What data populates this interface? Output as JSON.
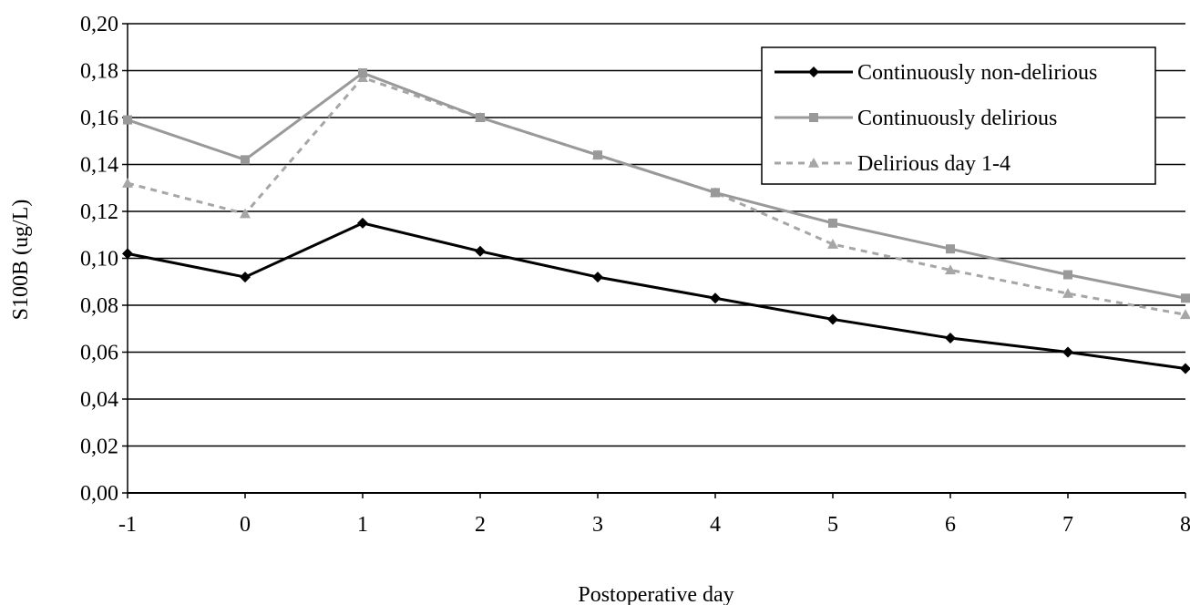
{
  "chart_data": {
    "type": "line",
    "xlabel": "Postoperative day",
    "ylabel": "S100B (ug/L)",
    "x": [
      -1,
      0,
      1,
      2,
      3,
      4,
      5,
      6,
      7,
      8
    ],
    "x_tick_labels": [
      "-1",
      "0",
      "1",
      "2",
      "3",
      "4",
      "5",
      "6",
      "7",
      "8"
    ],
    "y_tick_labels": [
      "0,00",
      "0,02",
      "0,04",
      "0,06",
      "0,08",
      "0,10",
      "0,12",
      "0,14",
      "0,16",
      "0,18",
      "0,20"
    ],
    "ylim": [
      0,
      0.2
    ],
    "y_ticks": [
      0,
      0.02,
      0.04,
      0.06,
      0.08,
      0.1,
      0.12,
      0.14,
      0.16,
      0.18,
      0.2
    ],
    "grid": "horizontal",
    "legend_position": "top-right",
    "series": [
      {
        "name": "Continuously non-delirious",
        "values": [
          0.102,
          0.092,
          0.115,
          0.103,
          0.092,
          0.083,
          0.074,
          0.066,
          0.06,
          0.053
        ],
        "color": "#000000",
        "marker": "diamond",
        "line_style": "solid"
      },
      {
        "name": "Continuously delirious",
        "values": [
          0.159,
          0.142,
          0.179,
          0.16,
          0.144,
          0.128,
          0.115,
          0.104,
          0.093,
          0.083
        ],
        "color": "#999999",
        "marker": "square",
        "line_style": "solid"
      },
      {
        "name": "Delirious day 1-4",
        "values": [
          0.132,
          0.119,
          0.177,
          0.16,
          0.144,
          0.128,
          0.106,
          0.095,
          0.085,
          0.076
        ],
        "color": "#a6a6a6",
        "marker": "triangle",
        "line_style": "dashed"
      }
    ]
  }
}
